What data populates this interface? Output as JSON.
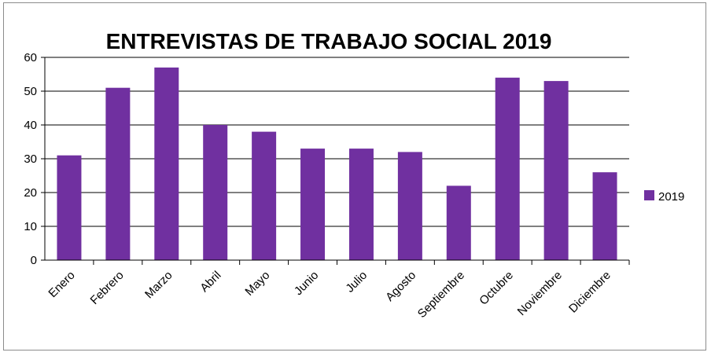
{
  "chart_data": {
    "type": "bar",
    "title": "ENTREVISTAS DE TRABAJO SOCIAL 2019",
    "categories": [
      "Enero",
      "Febrero",
      "Marzo",
      "Abril",
      "Mayo",
      "Junio",
      "Julio",
      "Agosto",
      "Septiembre",
      "Octubre",
      "Noviembre",
      "Diciembre"
    ],
    "series": [
      {
        "name": "2019",
        "values": [
          31,
          51,
          57,
          40,
          38,
          33,
          33,
          32,
          22,
          54,
          53,
          26
        ]
      }
    ],
    "ylim": [
      0,
      60
    ],
    "yticks": [
      0,
      10,
      20,
      30,
      40,
      50,
      60
    ],
    "grid": true,
    "legend_position": "right",
    "bar_color": "#7030a0"
  }
}
